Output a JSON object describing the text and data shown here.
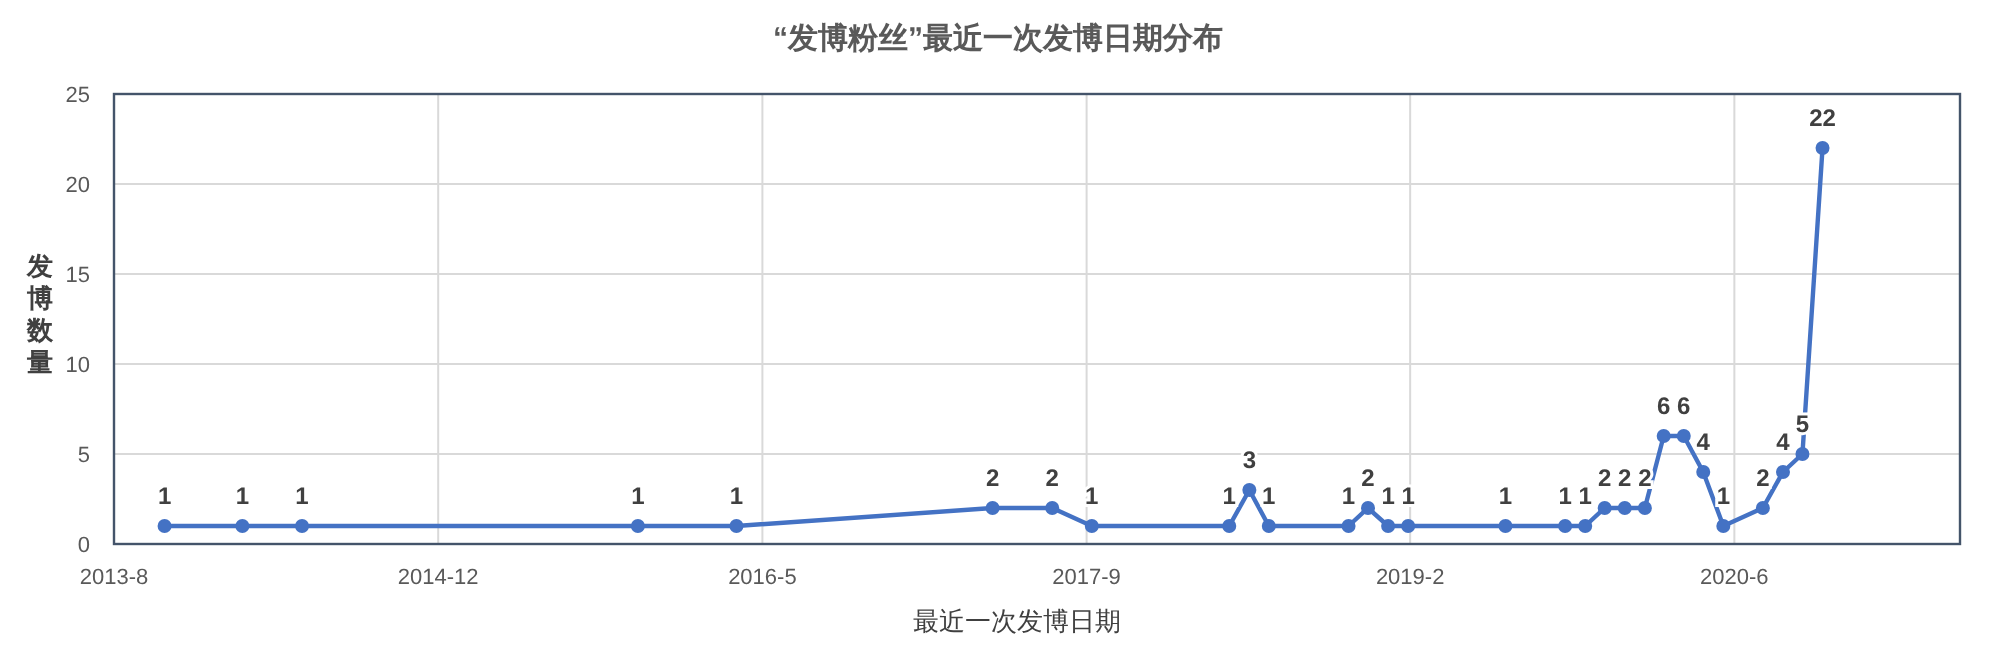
{
  "chart_data": {
    "type": "line",
    "title": "“发博粉丝”最近一次发博日期分布",
    "xlabel": "最近一次发博日期",
    "ylabel": "发博数量",
    "x": [
      "2013-11-01",
      "2014-03-01",
      "2014-06-01",
      "2015-11-01",
      "2016-04-01",
      "2017-05-01",
      "2017-08-01",
      "2017-10-01",
      "2018-05-01",
      "2018-06-01",
      "2018-07-01",
      "2018-11-01",
      "2018-12-01",
      "2019-01-01",
      "2019-02-01",
      "2019-07-01",
      "2019-10-01",
      "2019-11-01",
      "2019-12-01",
      "2020-01-01",
      "2020-02-01",
      "2020-03-01",
      "2020-04-01",
      "2020-05-01",
      "2020-06-01",
      "2020-08-01",
      "2020-09-01",
      "2020-10-01",
      "2020-11-01"
    ],
    "series": [
      {
        "color": "#4472c4",
        "values": [
          1,
          1,
          1,
          1,
          1,
          2,
          2,
          1,
          1,
          3,
          1,
          1,
          2,
          1,
          1,
          1,
          1,
          1,
          2,
          2,
          2,
          6,
          6,
          4,
          1,
          2,
          4,
          5,
          22
        ]
      }
    ],
    "xlim": [
      "2013-08-15",
      "2021-06-01"
    ],
    "xticks": [
      {
        "value": "2013-08-15",
        "label": "2013-8"
      },
      {
        "value": "2014-12-28",
        "label": "2014-12"
      },
      {
        "value": "2016-05-11",
        "label": "2016-5"
      },
      {
        "value": "2017-09-23",
        "label": "2017-9"
      },
      {
        "value": "2019-02-04",
        "label": "2019-2"
      },
      {
        "value": "2020-06-18",
        "label": "2020-6"
      }
    ],
    "ylim": [
      0,
      25
    ],
    "yticks": [
      0,
      5,
      10,
      15,
      20,
      25
    ],
    "grid": true,
    "marker": "circle",
    "line_style": "solid",
    "data_labels": true
  }
}
